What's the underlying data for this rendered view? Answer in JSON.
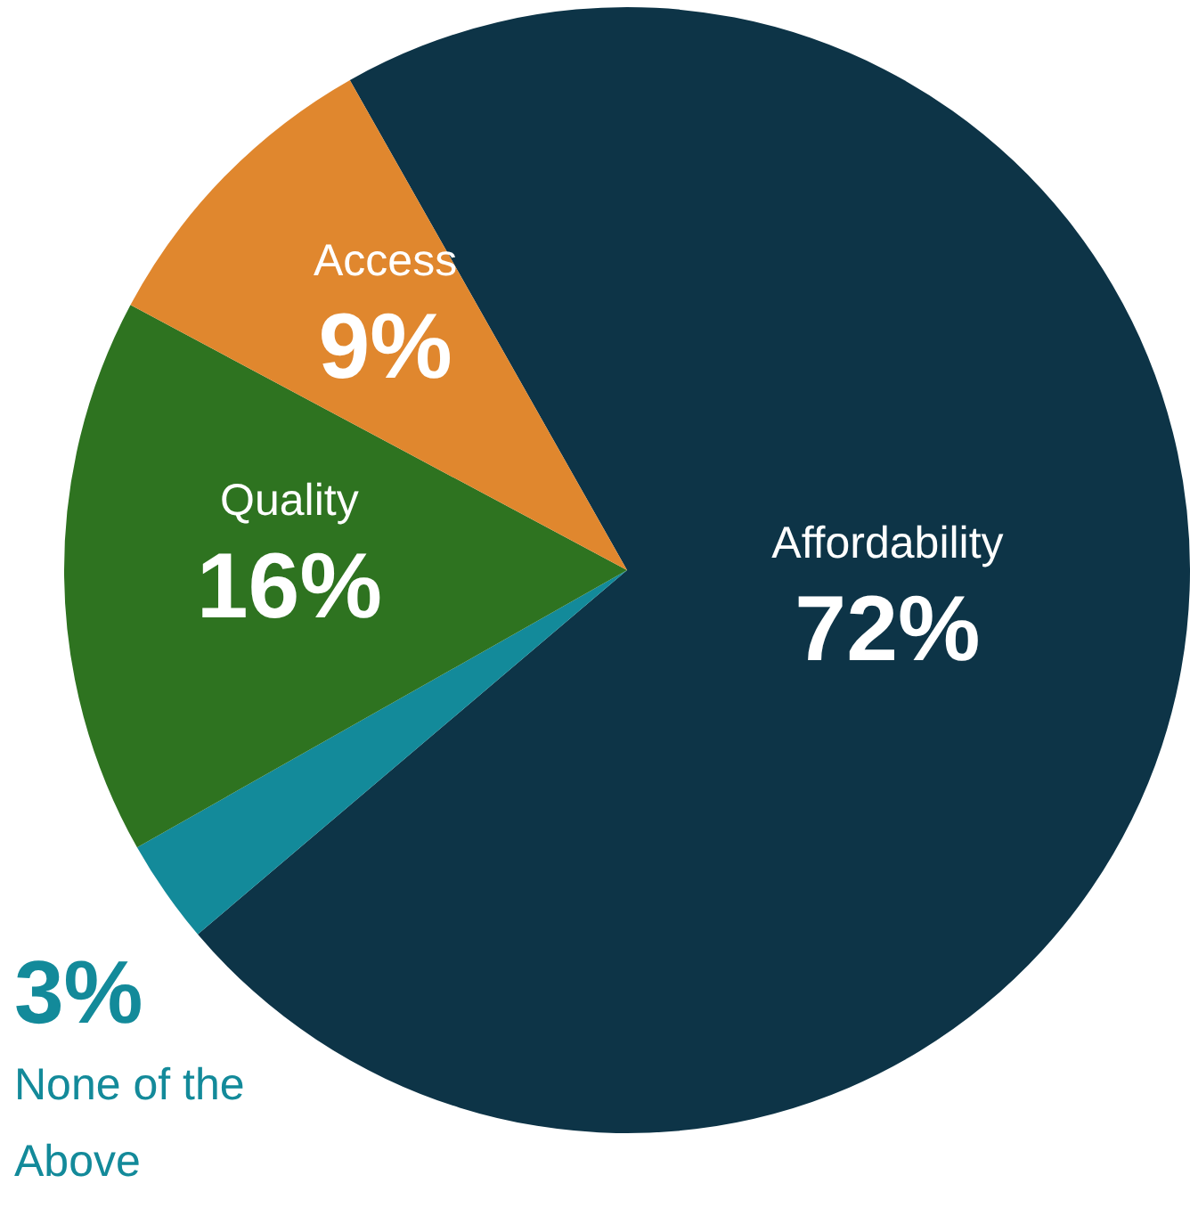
{
  "chart_data": {
    "type": "pie",
    "categories": [
      "Affordability",
      "None of the Above",
      "Quality",
      "Access"
    ],
    "values": [
      72,
      3,
      16,
      9
    ],
    "colors": [
      "#0d3447",
      "#138a9a",
      "#2e7320",
      "#e0872e"
    ],
    "value_labels": [
      "72%",
      "3%",
      "16%",
      "9%"
    ],
    "legend": false
  }
}
